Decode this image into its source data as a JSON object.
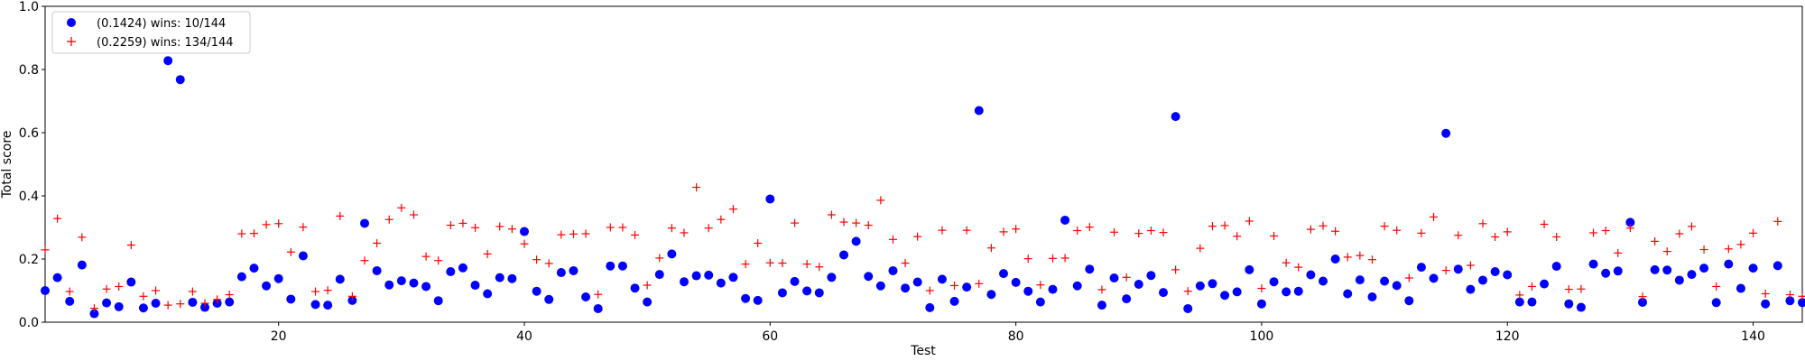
{
  "chart_data": {
    "type": "scatter",
    "xlabel": "Test",
    "ylabel": "Total score",
    "xlim": [
      1,
      144
    ],
    "ylim": [
      0,
      1.0
    ],
    "x_ticks": [
      20,
      40,
      60,
      80,
      100,
      120,
      140
    ],
    "y_ticks": [
      0.0,
      0.2,
      0.4,
      0.6,
      0.8,
      1.0
    ],
    "x_tick_labels": [
      "20",
      "40",
      "60",
      "80",
      "100",
      "120",
      "140"
    ],
    "y_tick_labels": [
      "0.0",
      "0.2",
      "0.4",
      "0.6",
      "0.8",
      "1.0"
    ],
    "grid": false,
    "legend_position": "upper-left",
    "series": [
      {
        "name": "(0.1424) wins: 10/144",
        "marker": "circle",
        "color": "#0000ff",
        "values": [
          0.1,
          0.141,
          0.066,
          0.181,
          0.027,
          0.061,
          0.049,
          0.127,
          0.045,
          0.06,
          0.828,
          0.768,
          0.063,
          0.047,
          0.06,
          0.064,
          0.144,
          0.171,
          0.115,
          0.138,
          0.073,
          0.21,
          0.056,
          0.054,
          0.136,
          0.069,
          0.313,
          0.163,
          0.118,
          0.131,
          0.124,
          0.113,
          0.068,
          0.16,
          0.172,
          0.117,
          0.09,
          0.141,
          0.138,
          0.287,
          0.098,
          0.072,
          0.157,
          0.163,
          0.08,
          0.043,
          0.178,
          0.178,
          0.108,
          0.064,
          0.151,
          0.216,
          0.128,
          0.147,
          0.149,
          0.124,
          0.142,
          0.075,
          0.069,
          0.39,
          0.093,
          0.129,
          0.099,
          0.093,
          0.142,
          0.213,
          0.256,
          0.145,
          0.115,
          0.163,
          0.108,
          0.127,
          0.046,
          0.136,
          0.066,
          0.111,
          0.67,
          0.088,
          0.154,
          0.126,
          0.098,
          0.064,
          0.104,
          0.323,
          0.115,
          0.168,
          0.054,
          0.14,
          0.074,
          0.12,
          0.148,
          0.094,
          0.651,
          0.043,
          0.115,
          0.122,
          0.085,
          0.096,
          0.166,
          0.058,
          0.128,
          0.096,
          0.098,
          0.15,
          0.13,
          0.2,
          0.09,
          0.134,
          0.08,
          0.13,
          0.116,
          0.068,
          0.174,
          0.139,
          0.598,
          0.168,
          0.104,
          0.133,
          0.16,
          0.15,
          0.064,
          0.064,
          0.121,
          0.177,
          0.058,
          0.047,
          0.184,
          0.155,
          0.162,
          0.316,
          0.063,
          0.166,
          0.165,
          0.133,
          0.151,
          0.171,
          0.062,
          0.184,
          0.107,
          0.171,
          0.058,
          0.179,
          0.068,
          0.062
        ]
      },
      {
        "name": "(0.2259) wins: 134/144",
        "marker": "plus",
        "color": "#ff0000",
        "values": [
          0.229,
          0.328,
          0.097,
          0.269,
          0.044,
          0.105,
          0.113,
          0.244,
          0.082,
          0.1,
          0.054,
          0.058,
          0.097,
          0.06,
          0.072,
          0.087,
          0.28,
          0.281,
          0.309,
          0.312,
          0.222,
          0.301,
          0.097,
          0.101,
          0.336,
          0.082,
          0.195,
          0.25,
          0.325,
          0.362,
          0.34,
          0.208,
          0.195,
          0.307,
          0.313,
          0.299,
          0.216,
          0.303,
          0.295,
          0.248,
          0.198,
          0.186,
          0.277,
          0.279,
          0.28,
          0.088,
          0.3,
          0.3,
          0.276,
          0.117,
          0.203,
          0.298,
          0.283,
          0.427,
          0.298,
          0.325,
          0.358,
          0.184,
          0.25,
          0.188,
          0.187,
          0.314,
          0.184,
          0.175,
          0.34,
          0.317,
          0.314,
          0.307,
          0.386,
          0.262,
          0.187,
          0.271,
          0.1,
          0.291,
          0.116,
          0.291,
          0.122,
          0.235,
          0.286,
          0.295,
          0.201,
          0.118,
          0.202,
          0.203,
          0.29,
          0.301,
          0.103,
          0.285,
          0.142,
          0.281,
          0.29,
          0.284,
          0.166,
          0.098,
          0.234,
          0.304,
          0.306,
          0.272,
          0.32,
          0.107,
          0.273,
          0.188,
          0.174,
          0.294,
          0.305,
          0.288,
          0.206,
          0.211,
          0.198,
          0.304,
          0.291,
          0.14,
          0.282,
          0.333,
          0.164,
          0.275,
          0.18,
          0.312,
          0.27,
          0.286,
          0.086,
          0.113,
          0.31,
          0.27,
          0.104,
          0.105,
          0.283,
          0.29,
          0.219,
          0.298,
          0.081,
          0.256,
          0.224,
          0.28,
          0.303,
          0.23,
          0.113,
          0.232,
          0.246,
          0.282,
          0.09,
          0.319,
          0.087,
          0.082
        ]
      }
    ]
  }
}
